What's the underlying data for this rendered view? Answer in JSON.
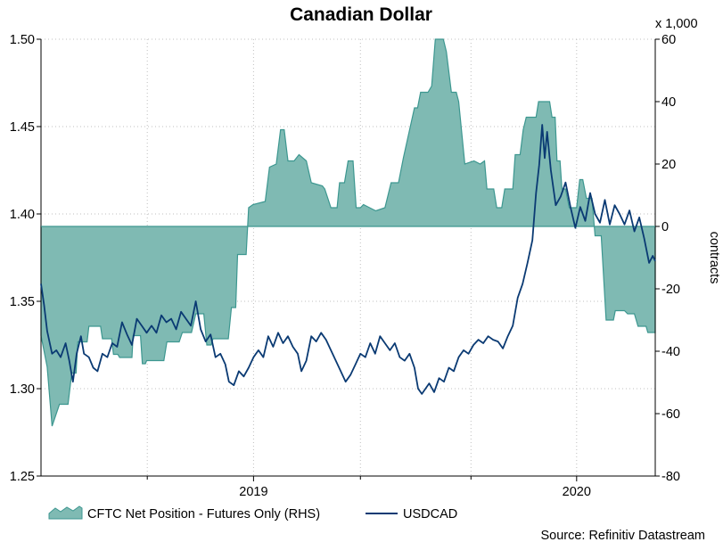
{
  "chart_data": {
    "type": "line",
    "title": "Canadian Dollar",
    "source": "Source: Refinitiv Datastream",
    "left_axis": {
      "range": [
        1.25,
        1.5
      ],
      "ticks": [
        "1.50",
        "1.45",
        "1.40",
        "1.35",
        "1.30",
        "1.25"
      ]
    },
    "right_axis": {
      "unit": "x 1,000",
      "label": "contracts",
      "range": [
        -80,
        60
      ],
      "ticks": [
        "60",
        "40",
        "20",
        "0",
        "-20",
        "-40",
        "-60",
        "-80"
      ]
    },
    "x_axis": {
      "ticks": [
        "2019",
        "2020"
      ]
    },
    "legend": {
      "cftc": "CFTC Net Position - Futures Only (RHS)",
      "usdcad": "USDCAD"
    },
    "colors": {
      "fill": "#7fbab3",
      "edge": "#3d9790",
      "line": "#0a3a73",
      "grid": "#bfbfbf"
    },
    "series": [
      {
        "name": "CFTC Net Position - Futures Only (RHS)",
        "axis": "right",
        "comment": "time fraction 0..1 across x axis, value in thousands of contracts",
        "points": [
          [
            0.0,
            -35
          ],
          [
            0.01,
            -45
          ],
          [
            0.018,
            -64
          ],
          [
            0.03,
            -57
          ],
          [
            0.044,
            -57
          ],
          [
            0.05,
            -47
          ],
          [
            0.057,
            -47
          ],
          [
            0.06,
            -37
          ],
          [
            0.075,
            -37
          ],
          [
            0.078,
            -32
          ],
          [
            0.097,
            -32
          ],
          [
            0.1,
            -36
          ],
          [
            0.115,
            -36
          ],
          [
            0.118,
            -41
          ],
          [
            0.125,
            -41
          ],
          [
            0.128,
            -42
          ],
          [
            0.148,
            -42
          ],
          [
            0.15,
            -35
          ],
          [
            0.162,
            -35
          ],
          [
            0.165,
            -44
          ],
          [
            0.17,
            -44
          ],
          [
            0.172,
            -43
          ],
          [
            0.2,
            -43
          ],
          [
            0.205,
            -37
          ],
          [
            0.225,
            -37
          ],
          [
            0.23,
            -34
          ],
          [
            0.245,
            -34
          ],
          [
            0.252,
            -28
          ],
          [
            0.265,
            -28
          ],
          [
            0.27,
            -38
          ],
          [
            0.277,
            -38
          ],
          [
            0.28,
            -36
          ],
          [
            0.305,
            -36
          ],
          [
            0.31,
            -26
          ],
          [
            0.317,
            -26
          ],
          [
            0.32,
            -9
          ],
          [
            0.334,
            -9
          ],
          [
            0.338,
            6
          ],
          [
            0.345,
            7
          ],
          [
            0.365,
            8
          ],
          [
            0.372,
            19
          ],
          [
            0.383,
            20
          ],
          [
            0.39,
            31
          ],
          [
            0.396,
            31
          ],
          [
            0.402,
            21
          ],
          [
            0.412,
            21
          ],
          [
            0.42,
            23
          ],
          [
            0.432,
            21
          ],
          [
            0.44,
            14
          ],
          [
            0.458,
            13
          ],
          [
            0.462,
            12
          ],
          [
            0.472,
            6
          ],
          [
            0.482,
            6
          ],
          [
            0.486,
            14
          ],
          [
            0.494,
            14
          ],
          [
            0.5,
            21
          ],
          [
            0.508,
            21
          ],
          [
            0.513,
            6
          ],
          [
            0.52,
            6
          ],
          [
            0.525,
            7
          ],
          [
            0.535,
            6
          ],
          [
            0.545,
            5
          ],
          [
            0.56,
            6
          ],
          [
            0.57,
            14
          ],
          [
            0.582,
            14
          ],
          [
            0.59,
            22
          ],
          [
            0.608,
            38
          ],
          [
            0.613,
            38
          ],
          [
            0.618,
            43
          ],
          [
            0.63,
            43
          ],
          [
            0.636,
            45
          ],
          [
            0.642,
            60
          ],
          [
            0.655,
            60
          ],
          [
            0.66,
            56
          ],
          [
            0.668,
            43
          ],
          [
            0.676,
            43
          ],
          [
            0.68,
            40
          ],
          [
            0.69,
            20
          ],
          [
            0.705,
            21
          ],
          [
            0.715,
            20
          ],
          [
            0.722,
            21
          ],
          [
            0.726,
            12
          ],
          [
            0.737,
            12
          ],
          [
            0.742,
            6
          ],
          [
            0.75,
            6
          ],
          [
            0.755,
            12
          ],
          [
            0.768,
            12
          ],
          [
            0.772,
            23
          ],
          [
            0.78,
            23
          ],
          [
            0.785,
            31
          ],
          [
            0.79,
            35
          ],
          [
            0.806,
            35
          ],
          [
            0.81,
            40
          ],
          [
            0.828,
            40
          ],
          [
            0.832,
            35
          ],
          [
            0.837,
            35
          ],
          [
            0.84,
            21
          ],
          [
            0.845,
            21
          ],
          [
            0.848,
            12
          ],
          [
            0.854,
            12
          ],
          [
            0.86,
            6
          ],
          [
            0.872,
            6
          ],
          [
            0.877,
            15
          ],
          [
            0.882,
            15
          ],
          [
            0.888,
            9
          ],
          [
            0.897,
            9
          ],
          [
            0.902,
            -3
          ],
          [
            0.912,
            -3
          ],
          [
            0.92,
            -30
          ],
          [
            0.932,
            -30
          ],
          [
            0.935,
            -27
          ],
          [
            0.95,
            -27
          ],
          [
            0.955,
            -28
          ],
          [
            0.966,
            -28
          ],
          [
            0.972,
            -32
          ],
          [
            0.985,
            -32
          ],
          [
            0.988,
            -34
          ],
          [
            1.0,
            -34
          ]
        ]
      },
      {
        "name": "USDCAD",
        "axis": "left",
        "comment": "time fraction 0..1 across x axis, exchange rate",
        "points": [
          [
            0.0,
            1.36
          ],
          [
            0.005,
            1.348
          ],
          [
            0.01,
            1.333
          ],
          [
            0.018,
            1.32
          ],
          [
            0.025,
            1.322
          ],
          [
            0.032,
            1.318
          ],
          [
            0.04,
            1.326
          ],
          [
            0.046,
            1.316
          ],
          [
            0.052,
            1.304
          ],
          [
            0.058,
            1.32
          ],
          [
            0.065,
            1.33
          ],
          [
            0.07,
            1.32
          ],
          [
            0.078,
            1.318
          ],
          [
            0.085,
            1.312
          ],
          [
            0.092,
            1.31
          ],
          [
            0.1,
            1.32
          ],
          [
            0.108,
            1.318
          ],
          [
            0.116,
            1.326
          ],
          [
            0.124,
            1.324
          ],
          [
            0.132,
            1.338
          ],
          [
            0.14,
            1.331
          ],
          [
            0.148,
            1.325
          ],
          [
            0.156,
            1.34
          ],
          [
            0.164,
            1.336
          ],
          [
            0.172,
            1.332
          ],
          [
            0.18,
            1.336
          ],
          [
            0.188,
            1.332
          ],
          [
            0.196,
            1.342
          ],
          [
            0.204,
            1.338
          ],
          [
            0.212,
            1.34
          ],
          [
            0.22,
            1.334
          ],
          [
            0.228,
            1.344
          ],
          [
            0.236,
            1.34
          ],
          [
            0.244,
            1.336
          ],
          [
            0.252,
            1.35
          ],
          [
            0.26,
            1.334
          ],
          [
            0.268,
            1.327
          ],
          [
            0.276,
            1.331
          ],
          [
            0.284,
            1.318
          ],
          [
            0.292,
            1.32
          ],
          [
            0.3,
            1.314
          ],
          [
            0.306,
            1.304
          ],
          [
            0.314,
            1.302
          ],
          [
            0.322,
            1.31
          ],
          [
            0.33,
            1.307
          ],
          [
            0.338,
            1.312
          ],
          [
            0.346,
            1.318
          ],
          [
            0.354,
            1.322
          ],
          [
            0.362,
            1.318
          ],
          [
            0.37,
            1.33
          ],
          [
            0.378,
            1.324
          ],
          [
            0.386,
            1.332
          ],
          [
            0.394,
            1.326
          ],
          [
            0.402,
            1.33
          ],
          [
            0.41,
            1.324
          ],
          [
            0.418,
            1.32
          ],
          [
            0.424,
            1.31
          ],
          [
            0.432,
            1.316
          ],
          [
            0.44,
            1.33
          ],
          [
            0.448,
            1.327
          ],
          [
            0.456,
            1.332
          ],
          [
            0.464,
            1.328
          ],
          [
            0.472,
            1.322
          ],
          [
            0.48,
            1.316
          ],
          [
            0.488,
            1.31
          ],
          [
            0.496,
            1.304
          ],
          [
            0.504,
            1.308
          ],
          [
            0.512,
            1.314
          ],
          [
            0.52,
            1.32
          ],
          [
            0.528,
            1.318
          ],
          [
            0.536,
            1.326
          ],
          [
            0.544,
            1.32
          ],
          [
            0.552,
            1.33
          ],
          [
            0.56,
            1.326
          ],
          [
            0.568,
            1.322
          ],
          [
            0.576,
            1.326
          ],
          [
            0.584,
            1.318
          ],
          [
            0.592,
            1.316
          ],
          [
            0.6,
            1.32
          ],
          [
            0.608,
            1.312
          ],
          [
            0.614,
            1.3
          ],
          [
            0.62,
            1.297
          ],
          [
            0.626,
            1.3
          ],
          [
            0.632,
            1.303
          ],
          [
            0.64,
            1.298
          ],
          [
            0.648,
            1.306
          ],
          [
            0.656,
            1.304
          ],
          [
            0.664,
            1.312
          ],
          [
            0.672,
            1.31
          ],
          [
            0.68,
            1.318
          ],
          [
            0.688,
            1.322
          ],
          [
            0.696,
            1.32
          ],
          [
            0.704,
            1.325
          ],
          [
            0.712,
            1.328
          ],
          [
            0.72,
            1.326
          ],
          [
            0.728,
            1.33
          ],
          [
            0.736,
            1.328
          ],
          [
            0.744,
            1.327
          ],
          [
            0.752,
            1.323
          ],
          [
            0.76,
            1.33
          ],
          [
            0.768,
            1.336
          ],
          [
            0.776,
            1.352
          ],
          [
            0.784,
            1.36
          ],
          [
            0.792,
            1.372
          ],
          [
            0.8,
            1.385
          ],
          [
            0.806,
            1.412
          ],
          [
            0.811,
            1.428
          ],
          [
            0.816,
            1.451
          ],
          [
            0.82,
            1.432
          ],
          [
            0.824,
            1.447
          ],
          [
            0.83,
            1.425
          ],
          [
            0.838,
            1.405
          ],
          [
            0.846,
            1.41
          ],
          [
            0.854,
            1.418
          ],
          [
            0.862,
            1.404
          ],
          [
            0.87,
            1.392
          ],
          [
            0.878,
            1.404
          ],
          [
            0.886,
            1.396
          ],
          [
            0.894,
            1.412
          ],
          [
            0.902,
            1.4
          ],
          [
            0.91,
            1.395
          ],
          [
            0.918,
            1.408
          ],
          [
            0.926,
            1.394
          ],
          [
            0.934,
            1.405
          ],
          [
            0.942,
            1.4
          ],
          [
            0.95,
            1.394
          ],
          [
            0.958,
            1.402
          ],
          [
            0.966,
            1.39
          ],
          [
            0.974,
            1.398
          ],
          [
            0.982,
            1.386
          ],
          [
            0.99,
            1.372
          ],
          [
            0.996,
            1.376
          ],
          [
            1.0,
            1.373
          ]
        ]
      }
    ]
  }
}
